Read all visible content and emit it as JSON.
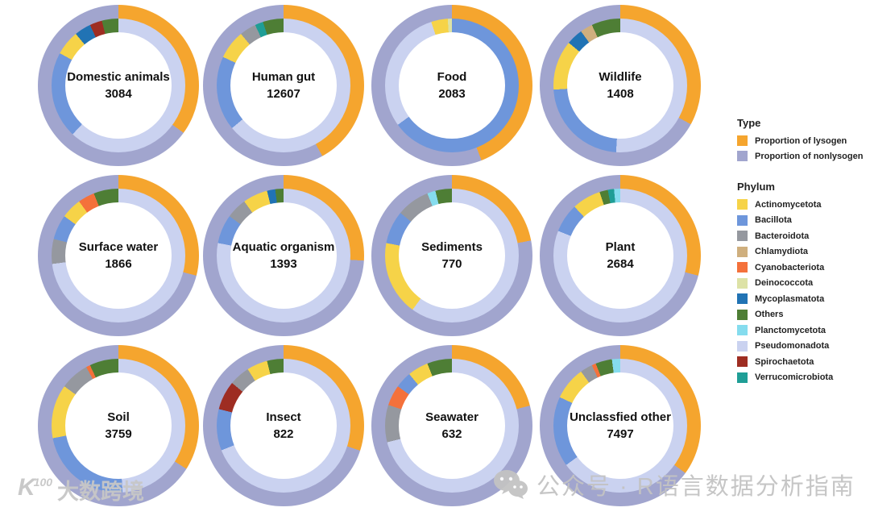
{
  "legend": {
    "type": {
      "title": "Type",
      "items": [
        {
          "label": "Proportion of lysogen",
          "color": "#F5A52E"
        },
        {
          "label": "Proportion of nonlysogen",
          "color": "#A1A5CE"
        }
      ]
    },
    "phylum": {
      "title": "Phylum",
      "items": [
        {
          "label": "Actinomycetota",
          "color": "#F6D348"
        },
        {
          "label": "Bacillota",
          "color": "#6E96DB"
        },
        {
          "label": "Bacteroidota",
          "color": "#95989F"
        },
        {
          "label": "Chlamydiota",
          "color": "#CFAF7E"
        },
        {
          "label": "Cyanobacteriota",
          "color": "#F4713B"
        },
        {
          "label": "Deinococcota",
          "color": "#DDE2A6"
        },
        {
          "label": "Mycoplasmatota",
          "color": "#2173B4"
        },
        {
          "label": "Others",
          "color": "#4E7E35"
        },
        {
          "label": "Planctomycetota",
          "color": "#85DCEE"
        },
        {
          "label": "Pseudomonadota",
          "color": "#CAD2F0"
        },
        {
          "label": "Spirochaetota",
          "color": "#9E2D22"
        },
        {
          "label": "Verrucomicrobiota",
          "color": "#1F9E96"
        }
      ]
    }
  },
  "watermarks": {
    "bottom_left_mark": "K",
    "bottom_left_mark_sup": "100",
    "bottom_left_text": "大数跨境",
    "bottom_right_text": "公众号 · R语言数据分析指南"
  },
  "chart_data": {
    "type": "pie",
    "subtype": "nested-donut-grid",
    "rings": {
      "outer": "Type (proportion of lysogen vs nonlysogen)",
      "inner": "Phylum composition"
    },
    "grid": {
      "columns": 4,
      "rows": 3
    },
    "donuts": [
      {
        "label": "Domestic animals",
        "count": 3084,
        "lysogen_pct": 35,
        "nonlysogen_pct": 65,
        "phylum": [
          {
            "phylum": "Pseudomonadota",
            "pct": 62
          },
          {
            "phylum": "Bacillota",
            "pct": 21
          },
          {
            "phylum": "Actinomycetota",
            "pct": 6
          },
          {
            "phylum": "Mycoplasmatota",
            "pct": 4
          },
          {
            "phylum": "Spirochaetota",
            "pct": 3
          },
          {
            "phylum": "Others",
            "pct": 4
          }
        ]
      },
      {
        "label": "Human gut",
        "count": 12607,
        "lysogen_pct": 42,
        "nonlysogen_pct": 58,
        "phylum": [
          {
            "phylum": "Pseudomonadota",
            "pct": 64
          },
          {
            "phylum": "Bacillota",
            "pct": 18
          },
          {
            "phylum": "Actinomycetota",
            "pct": 7
          },
          {
            "phylum": "Bacteroidota",
            "pct": 4
          },
          {
            "phylum": "Verrucomicrobiota",
            "pct": 2
          },
          {
            "phylum": "Others",
            "pct": 5
          }
        ]
      },
      {
        "label": "Food",
        "count": 2083,
        "lysogen_pct": 44,
        "nonlysogen_pct": 56,
        "phylum": [
          {
            "phylum": "Bacillota",
            "pct": 65
          },
          {
            "phylum": "Pseudomonadota",
            "pct": 30
          },
          {
            "phylum": "Actinomycetota",
            "pct": 4
          },
          {
            "phylum": "Deinococcota",
            "pct": 1
          }
        ]
      },
      {
        "label": "Wildlife",
        "count": 1408,
        "lysogen_pct": 33,
        "nonlysogen_pct": 67,
        "phylum": [
          {
            "phylum": "Pseudomonadota",
            "pct": 51
          },
          {
            "phylum": "Bacillota",
            "pct": 23
          },
          {
            "phylum": "Actinomycetota",
            "pct": 12
          },
          {
            "phylum": "Mycoplasmatota",
            "pct": 4
          },
          {
            "phylum": "Chlamydiota",
            "pct": 3
          },
          {
            "phylum": "Others",
            "pct": 7
          }
        ]
      },
      {
        "label": "Surface water",
        "count": 1866,
        "lysogen_pct": 29,
        "nonlysogen_pct": 71,
        "phylum": [
          {
            "phylum": "Pseudomonadota",
            "pct": 73
          },
          {
            "phylum": "Bacteroidota",
            "pct": 6
          },
          {
            "phylum": "Bacillota",
            "pct": 6
          },
          {
            "phylum": "Actinomycetota",
            "pct": 5
          },
          {
            "phylum": "Cyanobacteriota",
            "pct": 4
          },
          {
            "phylum": "Others",
            "pct": 6
          }
        ]
      },
      {
        "label": "Aquatic organism",
        "count": 1393,
        "lysogen_pct": 26,
        "nonlysogen_pct": 74,
        "phylum": [
          {
            "phylum": "Pseudomonadota",
            "pct": 78
          },
          {
            "phylum": "Bacillota",
            "pct": 7
          },
          {
            "phylum": "Bacteroidota",
            "pct": 5
          },
          {
            "phylum": "Actinomycetota",
            "pct": 6
          },
          {
            "phylum": "Mycoplasmatota",
            "pct": 2
          },
          {
            "phylum": "Others",
            "pct": 2
          }
        ]
      },
      {
        "label": "Sediments",
        "count": 770,
        "lysogen_pct": 22,
        "nonlysogen_pct": 78,
        "phylum": [
          {
            "phylum": "Pseudomonadota",
            "pct": 60
          },
          {
            "phylum": "Actinomycetota",
            "pct": 18
          },
          {
            "phylum": "Bacillota",
            "pct": 8
          },
          {
            "phylum": "Bacteroidota",
            "pct": 8
          },
          {
            "phylum": "Planctomycetota",
            "pct": 2
          },
          {
            "phylum": "Others",
            "pct": 4
          }
        ]
      },
      {
        "label": "Plant",
        "count": 2684,
        "lysogen_pct": 29,
        "nonlysogen_pct": 71,
        "phylum": [
          {
            "phylum": "Pseudomonadota",
            "pct": 81
          },
          {
            "phylum": "Bacillota",
            "pct": 7
          },
          {
            "phylum": "Actinomycetota",
            "pct": 7
          },
          {
            "phylum": "Others",
            "pct": 2
          },
          {
            "phylum": "Verrucomicrobiota",
            "pct": 1.5
          },
          {
            "phylum": "Planctomycetota",
            "pct": 1.5
          }
        ]
      },
      {
        "label": "Soil",
        "count": 3759,
        "lysogen_pct": 34,
        "nonlysogen_pct": 66,
        "phylum": [
          {
            "phylum": "Pseudomonadota",
            "pct": 49
          },
          {
            "phylum": "Bacillota",
            "pct": 23
          },
          {
            "phylum": "Actinomycetota",
            "pct": 13
          },
          {
            "phylum": "Bacteroidota",
            "pct": 7
          },
          {
            "phylum": "Cyanobacteriota",
            "pct": 1
          },
          {
            "phylum": "Others",
            "pct": 7
          }
        ]
      },
      {
        "label": "Insect",
        "count": 822,
        "lysogen_pct": 30,
        "nonlysogen_pct": 70,
        "phylum": [
          {
            "phylum": "Pseudomonadota",
            "pct": 69
          },
          {
            "phylum": "Bacillota",
            "pct": 10
          },
          {
            "phylum": "Spirochaetota",
            "pct": 7
          },
          {
            "phylum": "Bacteroidota",
            "pct": 5
          },
          {
            "phylum": "Actinomycetota",
            "pct": 5
          },
          {
            "phylum": "Others",
            "pct": 4
          }
        ]
      },
      {
        "label": "Seawater",
        "count": 632,
        "lysogen_pct": 21,
        "nonlysogen_pct": 79,
        "phylum": [
          {
            "phylum": "Pseudomonadota",
            "pct": 71
          },
          {
            "phylum": "Bacteroidota",
            "pct": 9
          },
          {
            "phylum": "Cyanobacteriota",
            "pct": 5
          },
          {
            "phylum": "Bacillota",
            "pct": 4
          },
          {
            "phylum": "Actinomycetota",
            "pct": 5
          },
          {
            "phylum": "Others",
            "pct": 6
          }
        ]
      },
      {
        "label": "Unclassfied other",
        "count": 7497,
        "lysogen_pct": 35,
        "nonlysogen_pct": 65,
        "phylum": [
          {
            "phylum": "Pseudomonadota",
            "pct": 65
          },
          {
            "phylum": "Bacillota",
            "pct": 17
          },
          {
            "phylum": "Actinomycetota",
            "pct": 8
          },
          {
            "phylum": "Bacteroidota",
            "pct": 3
          },
          {
            "phylum": "Cyanobacteriota",
            "pct": 1
          },
          {
            "phylum": "Others",
            "pct": 4
          },
          {
            "phylum": "Planctomycetota",
            "pct": 2
          }
        ]
      }
    ]
  }
}
